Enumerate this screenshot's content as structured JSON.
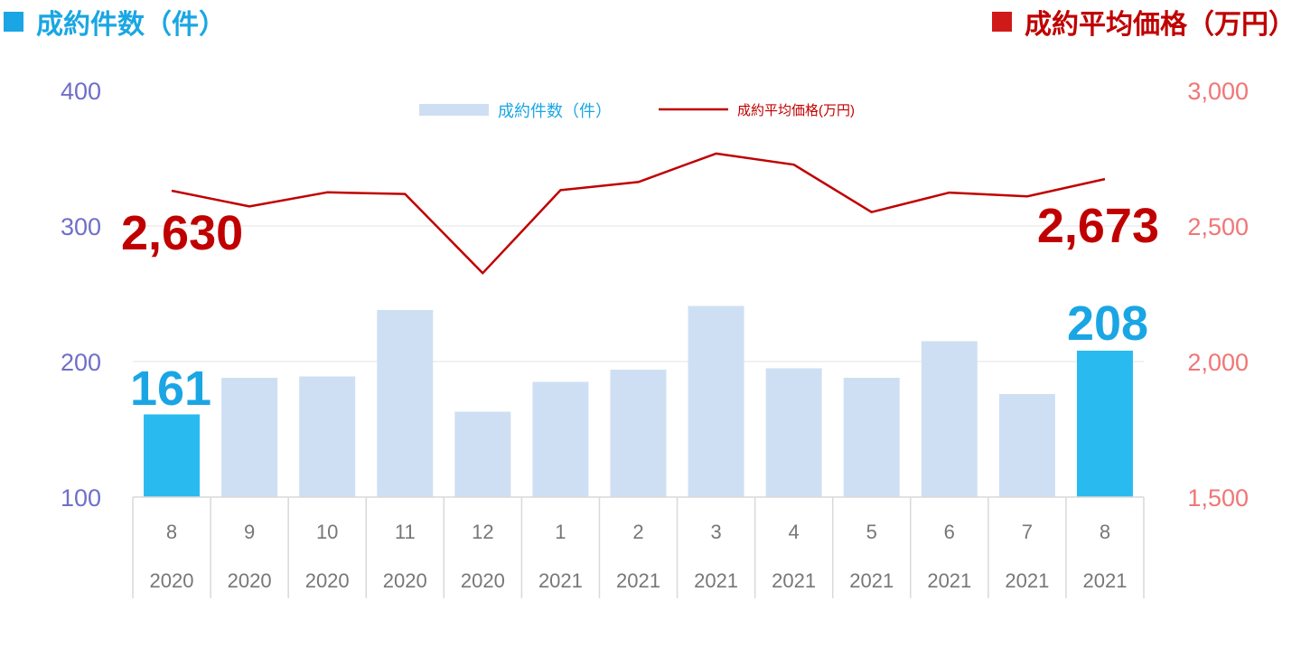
{
  "header": {
    "left_label": "成約件数（件）",
    "right_label": "成約平均価格（万円）"
  },
  "colors": {
    "bar": "#cfdff3",
    "bar_highlight": "#29bbef",
    "line": "#c00000",
    "left_axis": "#6f6fc8",
    "right_axis": "#f07676",
    "callout_count": "#1aa6e4",
    "callout_price": "#c00000",
    "grid": "#e3e3e3",
    "category_text": "#777777"
  },
  "chart_data": {
    "type": "bar",
    "categories": [
      "8",
      "9",
      "10",
      "11",
      "12",
      "1",
      "2",
      "3",
      "4",
      "5",
      "6",
      "7",
      "8"
    ],
    "years": [
      "2020",
      "2020",
      "2020",
      "2020",
      "2020",
      "2021",
      "2021",
      "2021",
      "2021",
      "2021",
      "2021",
      "2021",
      "2021"
    ],
    "y_left": {
      "min": 100,
      "max": 400,
      "ticks": [
        "100",
        "200",
        "300",
        "400"
      ]
    },
    "y_right": {
      "min": 1500,
      "max": 3000,
      "ticks": [
        "1,500",
        "2,000",
        "2,500",
        "3,000"
      ]
    },
    "legend": {
      "bar_label": "成約件数（件）",
      "line_label": "成約平均価格(万円)",
      "position": "top-center"
    },
    "grid": true,
    "series": [
      {
        "name": "成約件数（件）",
        "type": "bar",
        "axis": "left",
        "values": [
          161,
          188,
          189,
          238,
          163,
          185,
          194,
          241,
          195,
          188,
          215,
          176,
          208
        ],
        "highlight": [
          0,
          12
        ]
      },
      {
        "name": "成約平均価格(万円)",
        "type": "line",
        "axis": "right",
        "values": [
          2630,
          2572,
          2624,
          2618,
          2326,
          2632,
          2662,
          2767,
          2726,
          2551,
          2623,
          2609,
          2673
        ]
      }
    ],
    "callouts": {
      "first_count": "161",
      "last_count": "208",
      "first_price": "2,630",
      "last_price": "2,673"
    }
  }
}
